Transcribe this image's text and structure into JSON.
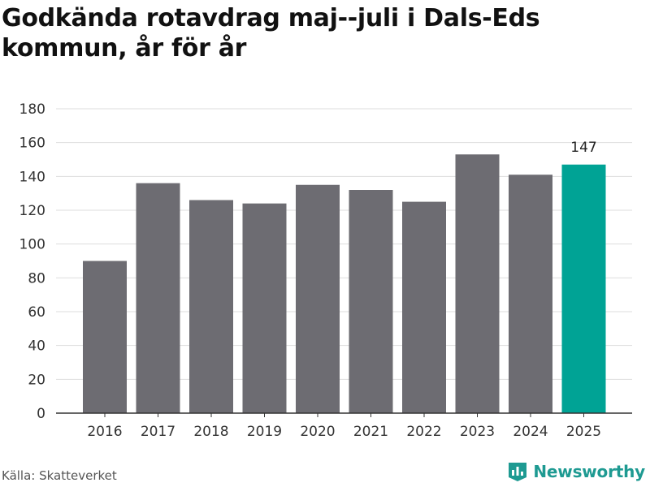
{
  "title": "Godkända rotavdrag maj--juli i Dals-Eds kommun, år för år",
  "source": "Källa: Skatteverket",
  "brand": {
    "name": "Newsworthy",
    "icon": "newsworthy-logo-icon",
    "color": "#1e9a92"
  },
  "colors": {
    "bar": "#6d6c72",
    "highlight": "#00a395",
    "grid": "#dddddd",
    "axis": "#333333"
  },
  "chart_data": {
    "type": "bar",
    "title": "Godkända rotavdrag maj--juli i Dals-Eds kommun, år för år",
    "xlabel": "",
    "ylabel": "",
    "categories": [
      "2016",
      "2017",
      "2018",
      "2019",
      "2020",
      "2021",
      "2022",
      "2023",
      "2024",
      "2025"
    ],
    "values": [
      90,
      136,
      126,
      124,
      135,
      132,
      125,
      153,
      141,
      147
    ],
    "highlight_index": 9,
    "data_labels": [
      {
        "index": 9,
        "text": "147"
      }
    ],
    "ylim": [
      0,
      180
    ],
    "yticks": [
      0,
      20,
      40,
      60,
      80,
      100,
      120,
      140,
      160,
      180
    ],
    "grid": true,
    "legend": "none"
  }
}
